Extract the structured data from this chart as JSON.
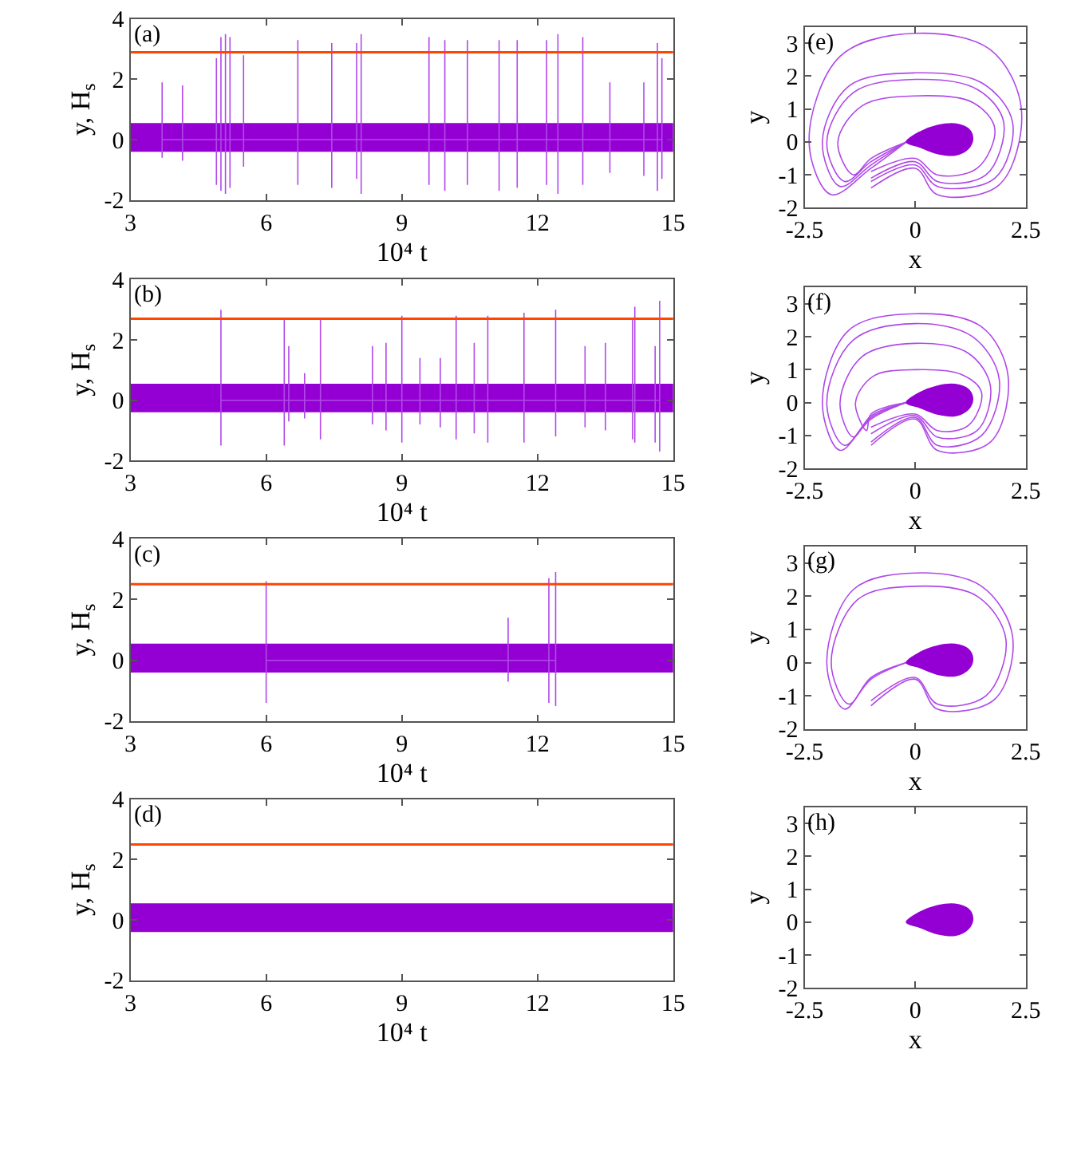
{
  "chart_data": [
    {
      "type": "line",
      "xlabel": "10⁴ t",
      "ylabel": "y, H$_{s}$",
      "annotations": [
        "(a)"
      ],
      "xlim": [
        3,
        15
      ],
      "xticks": [
        3,
        6,
        9,
        12,
        15
      ],
      "ylim": [
        -2,
        4
      ],
      "yticks": [
        -2,
        0,
        2,
        4
      ],
      "bands": [
        {
          "axis": "y",
          "from": -0.4,
          "to": 0.55,
          "color": "#9400d3"
        }
      ],
      "ref_lines": [
        {
          "axis": "y",
          "value": 2.9,
          "color": "#ff4500"
        }
      ],
      "series": [
        {
          "type": "line",
          "color": "#b048e8",
          "x": [
            3.7,
            3.7,
            3.7,
            3.7,
            4.15,
            4.15,
            4.15,
            4.15,
            4.9,
            4.9,
            4.9,
            4.9,
            5.0,
            5.0,
            5.0,
            5.0,
            5.1,
            5.1,
            5.1,
            5.1,
            5.2,
            5.2,
            5.2,
            5.2,
            5.5,
            5.5,
            5.5,
            5.5,
            6.7,
            6.7,
            6.7,
            6.7,
            7.45,
            7.45,
            7.45,
            7.45,
            8.0,
            8.0,
            8.0,
            8.0,
            8.1,
            8.1,
            8.1,
            8.1,
            9.6,
            9.6,
            9.6,
            9.6,
            9.95,
            9.95,
            9.95,
            9.95,
            10.45,
            10.45,
            10.45,
            10.45,
            11.15,
            11.15,
            11.15,
            11.15,
            11.55,
            11.55,
            11.55,
            11.55,
            12.2,
            12.2,
            12.2,
            12.2,
            12.45,
            12.45,
            12.45,
            12.45,
            13.0,
            13.0,
            13.0,
            13.0,
            13.6,
            13.6,
            13.6,
            13.6,
            14.35,
            14.35,
            14.35,
            14.35,
            14.65,
            14.65,
            14.65,
            14.65,
            14.75,
            14.75,
            14.75,
            14.75
          ],
          "values": [
            0,
            1.9,
            -0.6,
            0,
            0,
            1.8,
            -0.7,
            0,
            0,
            2.7,
            -1.5,
            0,
            0,
            3.4,
            -1.7,
            0,
            0,
            3.5,
            -1.8,
            0,
            0,
            3.4,
            -1.6,
            0,
            0,
            2.8,
            -0.9,
            0,
            0,
            3.3,
            -1.5,
            0,
            0,
            3.2,
            -1.6,
            0,
            0,
            3.2,
            -1.3,
            0,
            0,
            3.5,
            -1.8,
            0,
            0,
            3.4,
            -1.5,
            0,
            0,
            3.3,
            -1.7,
            0,
            0,
            3.3,
            -1.5,
            0,
            0,
            3.3,
            -1.7,
            0,
            0,
            3.3,
            -1.6,
            0,
            0,
            3.3,
            -1.5,
            0,
            0,
            3.5,
            -1.8,
            0,
            0,
            3.4,
            -1.5,
            0,
            0,
            1.9,
            -1.1,
            0,
            0,
            1.9,
            -1.2,
            0,
            0,
            3.2,
            -1.7,
            0,
            0,
            2.7,
            -1.3,
            0
          ]
        }
      ]
    },
    {
      "type": "line",
      "xlabel": "10⁴ t",
      "ylabel": "y, H$_{s}$",
      "annotations": [
        "(b)"
      ],
      "xlim": [
        3,
        15
      ],
      "xticks": [
        3,
        6,
        9,
        12,
        15
      ],
      "ylim": [
        -2,
        4
      ],
      "yticks": [
        -2,
        0,
        2,
        4
      ],
      "bands": [
        {
          "axis": "y",
          "from": -0.4,
          "to": 0.55,
          "color": "#9400d3"
        }
      ],
      "ref_lines": [
        {
          "axis": "y",
          "value": 2.7,
          "color": "#ff4500"
        }
      ],
      "series": [
        {
          "type": "line",
          "color": "#b048e8",
          "x": [
            5.0,
            5.0,
            5.0,
            5.0,
            6.4,
            6.4,
            6.4,
            6.4,
            6.5,
            6.5,
            6.5,
            6.5,
            6.85,
            6.85,
            6.85,
            6.85,
            7.2,
            7.2,
            7.2,
            7.2,
            8.35,
            8.35,
            8.35,
            8.35,
            8.65,
            8.65,
            8.65,
            8.65,
            9.0,
            9.0,
            9.0,
            9.0,
            9.4,
            9.4,
            9.4,
            9.4,
            9.85,
            9.85,
            9.85,
            9.85,
            10.2,
            10.2,
            10.2,
            10.2,
            10.6,
            10.6,
            10.6,
            10.6,
            10.9,
            10.9,
            10.9,
            10.9,
            11.7,
            11.7,
            11.7,
            11.7,
            12.4,
            12.4,
            12.4,
            12.4,
            13.05,
            13.05,
            13.05,
            13.05,
            13.5,
            13.5,
            13.5,
            13.5,
            14.1,
            14.1,
            14.1,
            14.1,
            14.15,
            14.15,
            14.15,
            14.15,
            14.6,
            14.6,
            14.6,
            14.6,
            14.7,
            14.7,
            14.7,
            14.7
          ],
          "values": [
            0,
            3.0,
            -1.5,
            0,
            0,
            2.7,
            -1.5,
            0,
            0,
            1.8,
            -0.7,
            0,
            0,
            0.9,
            -0.6,
            0,
            0,
            2.7,
            -1.3,
            0,
            0,
            1.8,
            -0.8,
            0,
            0,
            1.9,
            -1.0,
            0,
            0,
            2.8,
            -1.4,
            0,
            0,
            1.4,
            -0.8,
            0,
            0,
            1.4,
            -0.9,
            0,
            0,
            2.8,
            -1.3,
            0,
            0,
            1.9,
            -1.1,
            0,
            0,
            2.8,
            -1.4,
            0,
            0,
            2.9,
            -1.4,
            0,
            0,
            3.0,
            -1.2,
            0,
            0,
            1.8,
            -0.9,
            0,
            0,
            1.9,
            -1.0,
            0,
            0,
            2.7,
            -1.3,
            0,
            0,
            3.1,
            -1.4,
            0,
            0,
            1.8,
            -1.4,
            0,
            0,
            3.3,
            -1.7,
            0
          ]
        }
      ]
    },
    {
      "type": "line",
      "xlabel": "10⁴ t",
      "ylabel": "y, H$_{s}$",
      "annotations": [
        "(c)"
      ],
      "xlim": [
        3,
        15
      ],
      "xticks": [
        3,
        6,
        9,
        12,
        15
      ],
      "ylim": [
        -2,
        4
      ],
      "yticks": [
        -2,
        0,
        2,
        4
      ],
      "bands": [
        {
          "axis": "y",
          "from": -0.4,
          "to": 0.55,
          "color": "#9400d3"
        }
      ],
      "ref_lines": [
        {
          "axis": "y",
          "value": 2.5,
          "color": "#ff4500"
        }
      ],
      "series": [
        {
          "type": "line",
          "color": "#b048e8",
          "x": [
            6.0,
            6.0,
            6.0,
            6.0,
            11.35,
            11.35,
            11.35,
            11.35,
            12.25,
            12.25,
            12.25,
            12.25,
            12.4,
            12.4,
            12.4,
            12.4
          ],
          "values": [
            0,
            2.6,
            -1.4,
            0,
            0,
            1.4,
            -0.7,
            0,
            0,
            2.7,
            -1.4,
            0,
            0,
            2.9,
            -1.5,
            0
          ]
        }
      ]
    },
    {
      "type": "line",
      "xlabel": "10⁴ t",
      "ylabel": "y, H$_{s}$",
      "annotations": [
        "(d)"
      ],
      "xlim": [
        3,
        15
      ],
      "xticks": [
        3,
        6,
        9,
        12,
        15
      ],
      "ylim": [
        -2,
        4
      ],
      "yticks": [
        -2,
        0,
        2,
        4
      ],
      "bands": [
        {
          "axis": "y",
          "from": -0.4,
          "to": 0.55,
          "color": "#9400d3"
        }
      ],
      "ref_lines": [
        {
          "axis": "y",
          "value": 2.5,
          "color": "#ff4500"
        }
      ]
    },
    {
      "type": "line",
      "xlabel": "x",
      "ylabel": "y",
      "annotations": [
        "(e)"
      ],
      "xlim": [
        -2.5,
        2.5
      ],
      "xticks": [
        -2.5,
        0,
        2.5
      ],
      "ylim": [
        -2,
        3.5
      ],
      "yticks": [
        -2,
        -1,
        0,
        1,
        2,
        3
      ],
      "series": [
        {
          "type": "line",
          "color": "#b048e8",
          "x": [
            -0.2,
            -1.0,
            -1.9,
            -2.4,
            -1.7,
            0,
            1.7,
            2.4,
            1.9,
            0.5,
            0,
            -1.0
          ],
          "values": [
            0,
            -0.8,
            -1.6,
            0,
            2.6,
            3.3,
            2.8,
            1.0,
            -1.3,
            -1.6,
            -0.8,
            -1.4
          ]
        },
        {
          "type": "line",
          "color": "#b048e8",
          "x": [
            -0.2,
            -1.0,
            -1.7,
            -2.1,
            -1.5,
            0,
            1.5,
            2.2,
            1.8,
            0.5,
            0,
            -1.0
          ],
          "values": [
            0,
            -0.7,
            -1.35,
            0,
            1.7,
            2.1,
            1.8,
            0.6,
            -1.1,
            -1.35,
            -0.7,
            -1.2
          ]
        },
        {
          "type": "line",
          "color": "#b048e8",
          "x": [
            -0.2,
            -1.0,
            -1.6,
            -2.0,
            -1.4,
            0,
            1.4,
            2.0,
            1.6,
            0.5,
            0,
            -1.0
          ],
          "values": [
            0,
            -0.6,
            -1.2,
            0,
            1.5,
            1.9,
            1.6,
            0.6,
            -1.0,
            -1.2,
            -0.6,
            -1.1
          ]
        },
        {
          "type": "line",
          "color": "#b048e8",
          "x": [
            -0.2,
            -1.0,
            -1.4,
            -1.75,
            -1.2,
            0,
            1.3,
            1.8,
            1.4,
            0.5,
            0,
            -1.0
          ],
          "values": [
            0,
            -0.5,
            -1.0,
            0,
            1.1,
            1.4,
            1.2,
            0.4,
            -0.8,
            -1.0,
            -0.5,
            -0.9
          ]
        },
        {
          "type": "area",
          "color": "#9400d3",
          "x": [
            -0.2,
            0.1,
            0.5,
            0.9,
            1.2,
            1.3,
            1.2,
            0.9,
            0.5,
            0.1,
            -0.2
          ],
          "values": [
            0,
            0.3,
            0.5,
            0.55,
            0.4,
            0.1,
            -0.2,
            -0.4,
            -0.35,
            -0.15,
            0
          ]
        }
      ]
    },
    {
      "type": "line",
      "xlabel": "x",
      "ylabel": "y",
      "annotations": [
        "(f)"
      ],
      "xlim": [
        -2.5,
        2.5
      ],
      "xticks": [
        -2.5,
        0,
        2.5
      ],
      "ylim": [
        -2,
        3.5
      ],
      "yticks": [
        -2,
        -1,
        0,
        1,
        2,
        3
      ],
      "series": [
        {
          "type": "line",
          "color": "#b048e8",
          "x": [
            -0.2,
            -1.0,
            -1.7,
            -2.1,
            -1.5,
            0,
            1.5,
            2.1,
            1.7,
            0.5,
            0,
            -1.0
          ],
          "values": [
            0,
            -0.5,
            -1.45,
            0,
            2.2,
            2.7,
            2.3,
            0.8,
            -1.2,
            -1.45,
            -0.5,
            -1.3
          ]
        },
        {
          "type": "line",
          "color": "#b048e8",
          "x": [
            -0.2,
            -1.0,
            -1.6,
            -2.0,
            -1.4,
            0,
            1.3,
            1.9,
            1.5,
            0.5,
            0,
            -1.0
          ],
          "values": [
            0,
            -0.45,
            -1.3,
            0,
            1.9,
            2.4,
            2.0,
            0.7,
            -1.0,
            -1.3,
            -0.45,
            -1.2
          ]
        },
        {
          "type": "line",
          "color": "#b048e8",
          "x": [
            -0.2,
            -1.0,
            -1.4,
            -1.7,
            -1.2,
            0,
            1.2,
            1.7,
            1.4,
            0.5,
            0,
            -1.0
          ],
          "values": [
            0,
            -0.4,
            -1.05,
            0,
            1.4,
            1.8,
            1.5,
            0.5,
            -0.85,
            -1.05,
            -0.4,
            -0.95
          ]
        },
        {
          "type": "line",
          "color": "#b048e8",
          "x": [
            -0.2,
            -1.0,
            -1.1,
            -1.35,
            -0.95,
            0,
            1.05,
            1.5,
            1.2,
            0.5,
            0,
            -1.0
          ],
          "values": [
            0,
            -0.35,
            -0.85,
            0,
            0.8,
            1.0,
            0.85,
            0.3,
            -0.7,
            -0.85,
            -0.35,
            -0.75
          ]
        },
        {
          "type": "area",
          "color": "#9400d3",
          "x": [
            -0.2,
            0.1,
            0.5,
            0.9,
            1.2,
            1.3,
            1.2,
            0.9,
            0.5,
            0.1,
            -0.2
          ],
          "values": [
            0,
            0.3,
            0.5,
            0.55,
            0.4,
            0.1,
            -0.2,
            -0.4,
            -0.35,
            -0.15,
            0
          ]
        }
      ]
    },
    {
      "type": "line",
      "xlabel": "x",
      "ylabel": "y",
      "annotations": [
        "(g)"
      ],
      "xlim": [
        -2.5,
        2.5
      ],
      "xticks": [
        -2.5,
        0,
        2.5
      ],
      "ylim": [
        -2,
        3.5
      ],
      "yticks": [
        -2,
        -1,
        0,
        1,
        2,
        3
      ],
      "series": [
        {
          "type": "line",
          "color": "#b048e8",
          "x": [
            -0.2,
            -1.0,
            -1.6,
            -2.0,
            -1.4,
            0,
            1.5,
            2.2,
            1.8,
            0.5,
            0,
            -1.0
          ],
          "values": [
            0,
            -0.5,
            -1.4,
            0,
            2.2,
            2.7,
            2.3,
            0.8,
            -1.1,
            -1.4,
            -0.5,
            -1.3
          ]
        },
        {
          "type": "line",
          "color": "#b048e8",
          "x": [
            -0.2,
            -1.0,
            -1.5,
            -1.9,
            -1.3,
            0,
            1.4,
            2.05,
            1.6,
            0.5,
            0,
            -1.0
          ],
          "values": [
            0,
            -0.45,
            -1.25,
            0,
            1.9,
            2.3,
            2.0,
            0.7,
            -1.0,
            -1.25,
            -0.45,
            -1.15
          ]
        },
        {
          "type": "area",
          "color": "#9400d3",
          "x": [
            -0.2,
            0.1,
            0.5,
            0.9,
            1.2,
            1.3,
            1.2,
            0.9,
            0.5,
            0.1,
            -0.2
          ],
          "values": [
            0,
            0.3,
            0.5,
            0.55,
            0.4,
            0.1,
            -0.2,
            -0.4,
            -0.35,
            -0.15,
            0
          ]
        }
      ]
    },
    {
      "type": "line",
      "xlabel": "x",
      "ylabel": "y",
      "annotations": [
        "(h)"
      ],
      "xlim": [
        -2.5,
        2.5
      ],
      "xticks": [
        -2.5,
        0,
        2.5
      ],
      "ylim": [
        -2,
        3.5
      ],
      "yticks": [
        -2,
        -1,
        0,
        1,
        2,
        3
      ],
      "series": [
        {
          "type": "area",
          "color": "#9400d3",
          "x": [
            -0.2,
            0.1,
            0.5,
            0.9,
            1.2,
            1.3,
            1.2,
            0.9,
            0.5,
            0.1,
            -0.2
          ],
          "values": [
            0,
            0.3,
            0.5,
            0.55,
            0.4,
            0.1,
            -0.2,
            -0.4,
            -0.35,
            -0.15,
            0
          ]
        }
      ]
    }
  ]
}
